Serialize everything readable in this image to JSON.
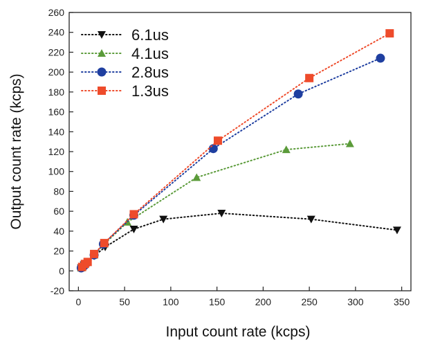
{
  "chart_data": {
    "type": "scatter",
    "title": "",
    "xlabel": "Input count rate (kcps)",
    "ylabel": "Output count rate (kcps)",
    "xlim": [
      -10,
      360
    ],
    "ylim": [
      -20,
      260
    ],
    "xticks": [
      0,
      50,
      100,
      150,
      200,
      250,
      300,
      350
    ],
    "yticks": [
      -20,
      0,
      20,
      40,
      60,
      80,
      100,
      120,
      140,
      160,
      180,
      200,
      220,
      240,
      260
    ],
    "grid": false,
    "legend_position": "top-left",
    "series": [
      {
        "name": "6.1us",
        "marker": "triangle-down",
        "color": "#111111",
        "x": [
          3,
          6,
          10,
          17,
          29,
          60,
          92,
          155,
          252,
          345
        ],
        "y": [
          3,
          6,
          9,
          15,
          24,
          42,
          52,
          58,
          52,
          41
        ]
      },
      {
        "name": "4.1us",
        "marker": "triangle-up",
        "color": "#5b9b3a",
        "x": [
          3,
          6,
          10,
          17,
          28,
          53,
          128,
          225,
          294
        ],
        "y": [
          3,
          6,
          9,
          16,
          27,
          49,
          94,
          122,
          128
        ]
      },
      {
        "name": "2.8us",
        "marker": "circle",
        "color": "#1f3fa0",
        "x": [
          3,
          6,
          9,
          17,
          27,
          60,
          146,
          238,
          327
        ],
        "y": [
          3,
          5,
          8,
          16,
          27,
          56,
          123,
          178,
          214
        ]
      },
      {
        "name": "1.3us",
        "marker": "square",
        "color": "#ee4b2b",
        "x": [
          4,
          7,
          10,
          17,
          28,
          60,
          151,
          250,
          337
        ],
        "y": [
          4,
          7,
          9,
          17,
          28,
          57,
          131,
          194,
          239
        ]
      }
    ]
  }
}
